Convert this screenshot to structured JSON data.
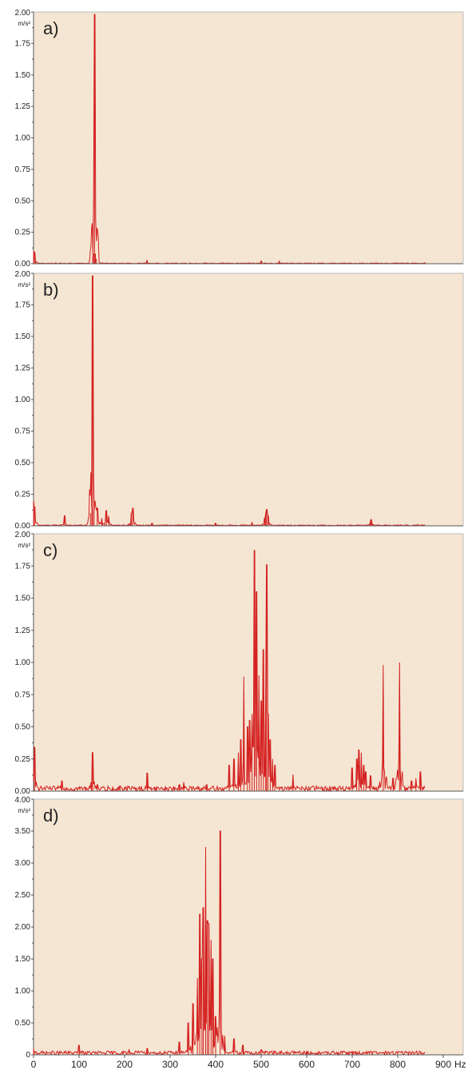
{
  "page": {
    "background": "#ffffff"
  },
  "style": {
    "plot_bg": "#f5e6d3",
    "line_color": "#d42020",
    "axis_color": "#555555",
    "grid": false
  },
  "shared_x_axis": {
    "ticks": [
      0,
      100,
      200,
      300,
      400,
      500,
      600,
      700,
      800,
      900
    ],
    "tick_labels": [
      "0",
      "100",
      "200",
      "300",
      "400",
      "500",
      "600",
      "700",
      "800",
      "900"
    ],
    "unit": "Hz",
    "range": [
      0,
      900
    ]
  },
  "chart_data": [
    {
      "type": "line",
      "panel_label": "a)",
      "ylabel_unit": "m/s²",
      "xlim": [
        0,
        900
      ],
      "ylim": [
        0,
        2.0
      ],
      "yticks": [
        0,
        0.25,
        0.5,
        0.75,
        1.0,
        1.25,
        1.5,
        1.75,
        2.0
      ],
      "ytick_labels": [
        "0.00",
        "0.25",
        "0.50",
        "0.75",
        "1.00",
        "1.25",
        "1.50",
        "1.75",
        "2.00"
      ],
      "grid": false,
      "series": [
        {
          "peaks": [
            [
              0,
              0.1
            ],
            [
              2,
              0.09
            ],
            [
              130,
              0.06
            ],
            [
              132,
              0.08
            ],
            [
              134,
              1.98
            ],
            [
              136,
              0.08
            ],
            [
              138,
              0.04
            ],
            [
              249,
              0.03
            ],
            [
              500,
              0.02
            ],
            [
              540,
              0.02
            ],
            [
              860,
              0.01
            ]
          ],
          "noise_floor": 0.006
        }
      ]
    },
    {
      "type": "line",
      "panel_label": "b)",
      "ylabel_unit": "m/s²",
      "xlim": [
        0,
        900
      ],
      "ylim": [
        0,
        2.0
      ],
      "yticks": [
        0,
        0.25,
        0.5,
        0.75,
        1.0,
        1.25,
        1.5,
        1.75,
        2.0
      ],
      "ytick_labels": [
        "0.00",
        "0.25",
        "0.50",
        "0.75",
        "1.00",
        "1.25",
        "1.50",
        "1.75",
        "2.00"
      ],
      "grid": false,
      "series": [
        {
          "peaks": [
            [
              0,
              0.2
            ],
            [
              2,
              0.15
            ],
            [
              68,
              0.08
            ],
            [
              125,
              0.1
            ],
            [
              128,
              0.15
            ],
            [
              130,
              1.98
            ],
            [
              133,
              0.12
            ],
            [
              140,
              0.14
            ],
            [
              150,
              0.06
            ],
            [
              160,
              0.12
            ],
            [
              165,
              0.08
            ],
            [
              215,
              0.1
            ],
            [
              218,
              0.14
            ],
            [
              260,
              0.02
            ],
            [
              400,
              0.02
            ],
            [
              480,
              0.03
            ],
            [
              508,
              0.06
            ],
            [
              510,
              0.1
            ],
            [
              512,
              0.13
            ],
            [
              515,
              0.08
            ],
            [
              740,
              0.03
            ],
            [
              742,
              0.05
            ]
          ],
          "noise_floor": 0.008
        }
      ]
    },
    {
      "type": "line",
      "panel_label": "c)",
      "ylabel_unit": "m/s²",
      "xlim": [
        0,
        900
      ],
      "ylim": [
        0,
        2.0
      ],
      "yticks": [
        0,
        0.25,
        0.5,
        0.75,
        1.0,
        1.25,
        1.5,
        1.75,
        2.0
      ],
      "ytick_labels": [
        "0.00",
        "0.25",
        "0.50",
        "0.75",
        "1.00",
        "1.25",
        "1.50",
        "1.75",
        "2.00"
      ],
      "grid": false,
      "series": [
        {
          "peaks": [
            [
              2,
              0.34
            ],
            [
              62,
              0.08
            ],
            [
              130,
              0.3
            ],
            [
              140,
              0.05
            ],
            [
              190,
              0.04
            ],
            [
              250,
              0.14
            ],
            [
              320,
              0.05
            ],
            [
              330,
              0.07
            ],
            [
              380,
              0.05
            ],
            [
              430,
              0.2
            ],
            [
              440,
              0.25
            ],
            [
              450,
              0.3
            ],
            [
              455,
              0.4
            ],
            [
              462,
              0.89
            ],
            [
              470,
              0.5
            ],
            [
              475,
              0.55
            ],
            [
              480,
              0.6
            ],
            [
              485,
              1.87
            ],
            [
              490,
              1.55
            ],
            [
              495,
              0.9
            ],
            [
              500,
              0.7
            ],
            [
              505,
              1.1
            ],
            [
              510,
              0.8
            ],
            [
              512,
              1.76
            ],
            [
              515,
              0.6
            ],
            [
              520,
              0.4
            ],
            [
              525,
              0.25
            ],
            [
              530,
              0.2
            ],
            [
              570,
              0.13
            ],
            [
              700,
              0.18
            ],
            [
              710,
              0.25
            ],
            [
              715,
              0.32
            ],
            [
              720,
              0.3
            ],
            [
              725,
              0.2
            ],
            [
              730,
              0.15
            ],
            [
              740,
              0.12
            ],
            [
              768,
              0.98
            ],
            [
              790,
              0.1
            ],
            [
              804,
              1.0
            ],
            [
              830,
              0.08
            ],
            [
              840,
              0.1
            ],
            [
              850,
              0.15
            ]
          ],
          "noise_floor": 0.04
        }
      ]
    },
    {
      "type": "line",
      "panel_label": "d)",
      "ylabel_unit": "m/s²",
      "xlim": [
        0,
        900
      ],
      "ylim": [
        0,
        4.0
      ],
      "yticks": [
        0,
        0.5,
        1.0,
        1.5,
        2.0,
        2.5,
        3.0,
        3.5,
        4.0
      ],
      "ytick_labels": [
        "0",
        "0.50",
        "1.00",
        "1.50",
        "2.00",
        "2.50",
        "3.00",
        "3.50",
        "4.00"
      ],
      "grid": false,
      "series": [
        {
          "peaks": [
            [
              0,
              0.1
            ],
            [
              100,
              0.15
            ],
            [
              210,
              0.08
            ],
            [
              250,
              0.1
            ],
            [
              320,
              0.2
            ],
            [
              340,
              0.5
            ],
            [
              350,
              0.8
            ],
            [
              360,
              1.2
            ],
            [
              365,
              2.2
            ],
            [
              370,
              1.5
            ],
            [
              373,
              2.3
            ],
            [
              378,
              3.25
            ],
            [
              382,
              2.1
            ],
            [
              385,
              2.05
            ],
            [
              390,
              1.8
            ],
            [
              394,
              1.5
            ],
            [
              400,
              0.6
            ],
            [
              410,
              3.5
            ],
            [
              420,
              0.3
            ],
            [
              440,
              0.25
            ],
            [
              460,
              0.15
            ],
            [
              500,
              0.08
            ],
            [
              600,
              0.06
            ],
            [
              700,
              0.05
            ]
          ],
          "noise_floor": 0.06
        }
      ]
    }
  ]
}
